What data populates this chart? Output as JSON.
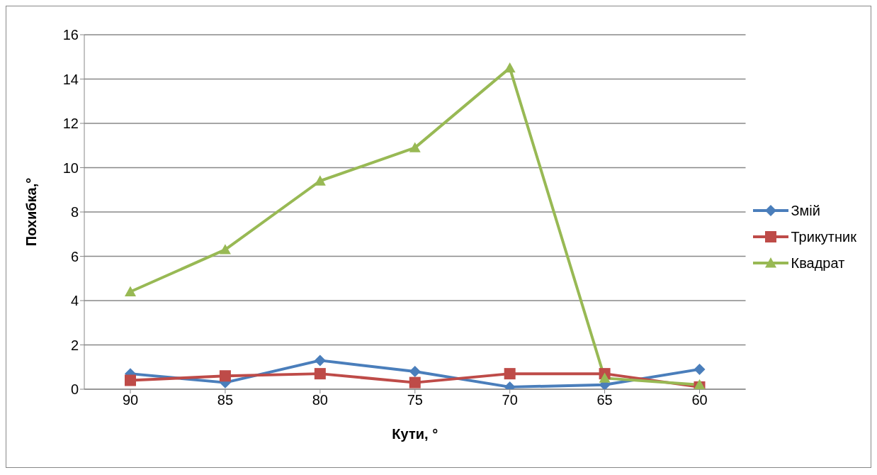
{
  "chart_data": {
    "type": "line",
    "xlabel": "Кути, °",
    "ylabel": "Похибка,°",
    "categories": [
      "90",
      "85",
      "80",
      "75",
      "70",
      "65",
      "60"
    ],
    "series": [
      {
        "name": "Змій",
        "color": "#4a7ebb",
        "values": [
          0.7,
          0.3,
          1.3,
          0.8,
          0.1,
          0.2,
          0.9
        ],
        "marker": "diamond"
      },
      {
        "name": "Трикутник",
        "color": "#be4b48",
        "values": [
          0.4,
          0.6,
          0.7,
          0.3,
          0.7,
          0.7,
          0.1
        ],
        "marker": "square"
      },
      {
        "name": "Квадрат",
        "color": "#98b954",
        "values": [
          4.4,
          6.3,
          9.4,
          10.9,
          14.5,
          0.5,
          0.2
        ],
        "marker": "triangle"
      }
    ],
    "ylim": [
      0,
      16
    ],
    "yticks": [
      0,
      2,
      4,
      6,
      8,
      10,
      12,
      14,
      16
    ],
    "grid": "y",
    "legend": "right"
  }
}
